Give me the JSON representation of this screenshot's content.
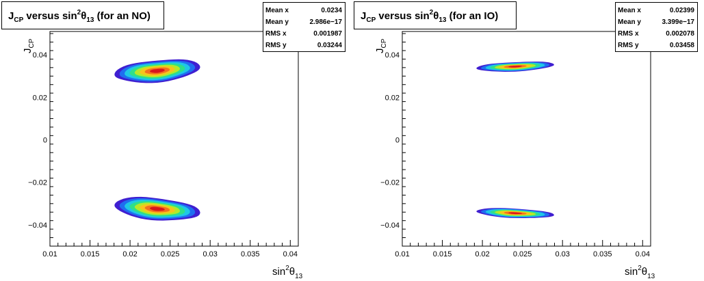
{
  "chart_data": [
    {
      "type": "heatmap",
      "title_prefix": "J",
      "title_prefix_sub": "CP",
      "title_mid": " versus sin",
      "title_sup": "2",
      "title_theta": "θ",
      "title_theta_sub": "13",
      "title_suffix": " (for an NO)",
      "xlabel_main": "sin",
      "xlabel_sup": "2",
      "xlabel_theta": "θ",
      "xlabel_sub": "13",
      "ylabel_main": "J",
      "ylabel_sub": "CP",
      "xlim": [
        0.01,
        0.041
      ],
      "ylim": [
        -0.05,
        0.051
      ],
      "xticks": [
        0.01,
        0.015,
        0.02,
        0.025,
        0.03,
        0.035,
        0.04
      ],
      "xtick_labels": [
        "0.01",
        "0.015",
        "0.02",
        "0.025",
        "0.03",
        "0.035",
        "0.04"
      ],
      "yticks": [
        -0.04,
        -0.02,
        0,
        0.02,
        0.04
      ],
      "ytick_labels": [
        "−0.04",
        "−0.02",
        "0",
        "0.02",
        "0.04"
      ],
      "stats": [
        {
          "label": "Mean x",
          "value": "0.0234"
        },
        {
          "label": "Mean y",
          "value": "2.986e−17"
        },
        {
          "label": "RMS x",
          "value": "0.001987"
        },
        {
          "label": "RMS y",
          "value": "0.03244"
        }
      ],
      "blobs": [
        {
          "cx": 0.0234,
          "cy": 0.0325,
          "x_min": 0.0175,
          "x_max": 0.0282,
          "y_halfwidth": 0.0052,
          "slope": 0.52
        },
        {
          "cx": 0.0234,
          "cy": -0.0325,
          "x_min": 0.0175,
          "x_max": 0.0282,
          "y_halfwidth": 0.0052,
          "slope": -0.52
        }
      ]
    },
    {
      "type": "heatmap",
      "title_prefix": "J",
      "title_prefix_sub": "CP",
      "title_mid": " versus sin",
      "title_sup": "2",
      "title_theta": "θ",
      "title_theta_sub": "13",
      "title_suffix": " (for an IO)",
      "xlabel_main": "sin",
      "xlabel_sup": "2",
      "xlabel_theta": "θ",
      "xlabel_sub": "13",
      "ylabel_main": "J",
      "ylabel_sub": "CP",
      "xlim": [
        0.01,
        0.041
      ],
      "ylim": [
        -0.05,
        0.051
      ],
      "xticks": [
        0.01,
        0.015,
        0.02,
        0.025,
        0.03,
        0.035,
        0.04
      ],
      "xtick_labels": [
        "0.01",
        "0.015",
        "0.02",
        "0.025",
        "0.03",
        "0.035",
        "0.04"
      ],
      "yticks": [
        -0.04,
        -0.02,
        0,
        0.02,
        0.04
      ],
      "ytick_labels": [
        "−0.04",
        "−0.02",
        "0",
        "0.02",
        "0.04"
      ],
      "stats": [
        {
          "label": "Mean x",
          "value": "0.02399"
        },
        {
          "label": "Mean y",
          "value": "3.399e−17"
        },
        {
          "label": "RMS x",
          "value": "0.002078"
        },
        {
          "label": "RMS y",
          "value": "0.03458"
        }
      ],
      "blobs": [
        {
          "cx": 0.0241,
          "cy": 0.0345,
          "x_min": 0.0193,
          "x_max": 0.029,
          "y_halfwidth": 0.0022,
          "slope": 0.66
        },
        {
          "cx": 0.0241,
          "cy": -0.0345,
          "x_min": 0.0193,
          "x_max": 0.029,
          "y_halfwidth": 0.0022,
          "slope": -0.66
        }
      ]
    }
  ]
}
